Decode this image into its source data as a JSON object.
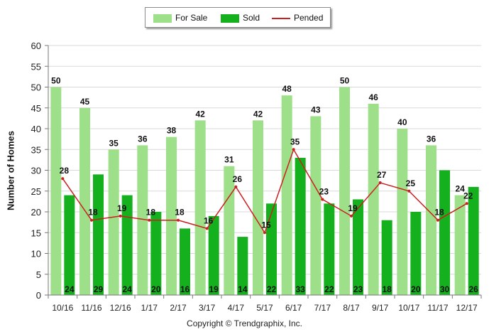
{
  "legend": {
    "for_sale_label": "For Sale",
    "sold_label": "Sold",
    "pended_label": "Pended"
  },
  "copyright": "Copyright © Trendgraphix, Inc.",
  "colors": {
    "for_sale": "#9ee08a",
    "sold": "#14b01e",
    "pended": "#cc1f1f",
    "grid": "#d9d9d9"
  },
  "chart_data": {
    "type": "bar",
    "ylabel": "Number of Homes",
    "xlabel": "",
    "title": "",
    "ylim": [
      0,
      60
    ],
    "yticks": [
      0,
      5,
      10,
      15,
      20,
      25,
      30,
      35,
      40,
      45,
      50,
      55,
      60
    ],
    "grid": true,
    "legend_position": "top-center",
    "categories": [
      "10/16",
      "11/16",
      "12/16",
      "1/17",
      "2/17",
      "3/17",
      "4/17",
      "5/17",
      "6/17",
      "7/17",
      "8/17",
      "9/17",
      "10/17",
      "11/17",
      "12/17"
    ],
    "series": [
      {
        "name": "For Sale",
        "type": "bar",
        "values": [
          50,
          45,
          35,
          36,
          38,
          42,
          31,
          42,
          48,
          43,
          50,
          46,
          40,
          36,
          24
        ]
      },
      {
        "name": "Sold",
        "type": "bar",
        "values": [
          24,
          29,
          24,
          20,
          16,
          19,
          14,
          22,
          33,
          22,
          23,
          18,
          20,
          30,
          26
        ]
      },
      {
        "name": "Pended",
        "type": "line",
        "values": [
          28,
          18,
          19,
          18,
          18,
          16,
          26,
          15,
          35,
          23,
          19,
          27,
          25,
          18,
          22
        ]
      }
    ]
  }
}
